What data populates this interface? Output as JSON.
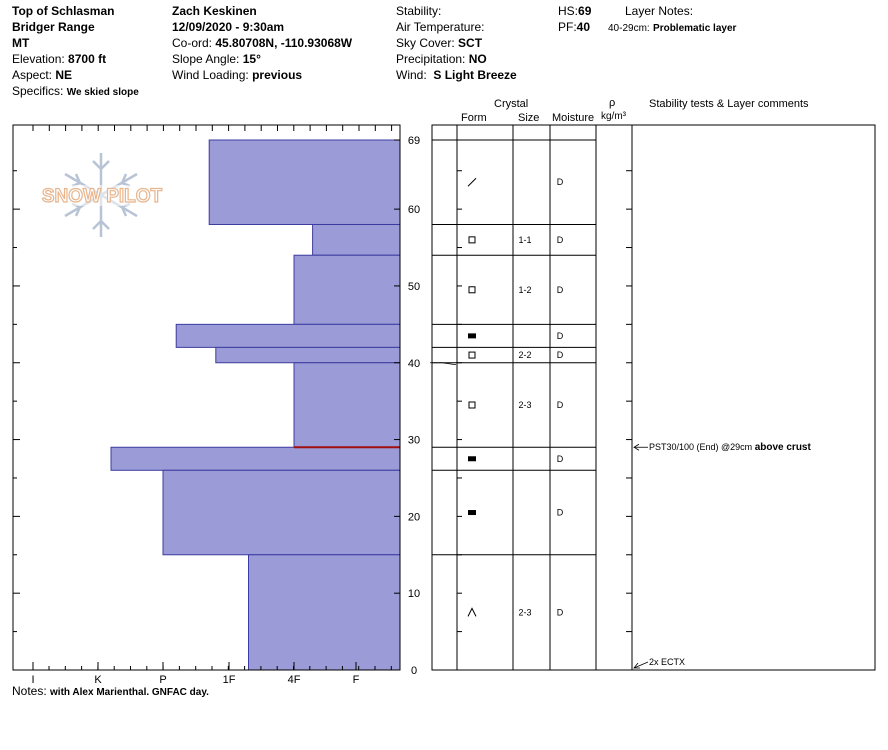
{
  "header": {
    "location": "Top of Schlasman",
    "range": "Bridger Range",
    "state": "MT",
    "elevation_label": "Elevation:",
    "elevation": "8700 ft",
    "aspect_label": "Aspect:",
    "aspect": "NE",
    "specifics_label": "Specifics:",
    "specifics": "We skied slope",
    "observer": "Zach Keskinen",
    "datetime": "12/09/2020 - 9:30am",
    "coord_label": "Co-ord:",
    "coord": "45.80708N, -110.93068W",
    "slope_label": "Slope Angle:",
    "slope": "15°",
    "wind_loading_label": "Wind Loading:",
    "wind_loading": "previous",
    "stability_label": "Stability:",
    "air_temp_label": "Air Temperature:",
    "sky_label": "Sky Cover:",
    "sky": "SCT",
    "precip_label": "Precipitation:",
    "precip": "NO",
    "wind_label": "Wind:",
    "wind": "S Light Breeze",
    "hs_label": "HS:",
    "hs": "69",
    "pf_label": "PF:",
    "pf": "40",
    "layer_notes_label": "Layer Notes:",
    "layer_note_range": "40-29cm:",
    "layer_note_text": "Problematic layer"
  },
  "columns": {
    "crystal": "Crystal",
    "form": "Form",
    "size": "Size",
    "moisture": "Moisture",
    "rho": "ρ",
    "density_unit": "kg/m³",
    "comments": "Stability tests & Layer comments"
  },
  "logo_text": "SNOW PILOT",
  "notes_label": "Notes:",
  "notes": "with Alex Marienthal. GNFAC day.",
  "colors": {
    "bar_fill": "#9b9bd7",
    "bar_stroke": "#3c3ca0",
    "crust_line": "#a01010",
    "logo": "#e8b48c",
    "snowflake": "#b8c4d6"
  },
  "chart_data": {
    "type": "snow_profile",
    "ylabel": "",
    "ylim": [
      0,
      69
    ],
    "height_ticks": [
      0,
      10,
      20,
      30,
      40,
      50,
      60,
      69
    ],
    "hardness_scale": [
      "I",
      "K",
      "P",
      "1F",
      "4F",
      "F"
    ],
    "hardness_values": [
      6,
      5,
      4,
      3,
      2,
      1
    ],
    "layers": [
      {
        "top": 69,
        "bottom": 58,
        "hardness": 3.3,
        "form": "/",
        "size": "",
        "moisture": "D"
      },
      {
        "top": 58,
        "bottom": 54,
        "hardness": 1.7,
        "form": "□",
        "size": "1-1",
        "moisture": "D"
      },
      {
        "top": 54,
        "bottom": 45,
        "hardness": 2.0,
        "form": "□",
        "size": "1-2",
        "moisture": "D"
      },
      {
        "top": 45,
        "bottom": 42,
        "hardness": 3.8,
        "form": "■",
        "size": "",
        "moisture": "D"
      },
      {
        "top": 42,
        "bottom": 40,
        "hardness": 3.2,
        "form": "□",
        "size": "2-2",
        "moisture": "D"
      },
      {
        "top": 40,
        "bottom": 29,
        "hardness": 2.0,
        "form": "□",
        "size": "2-3",
        "moisture": "D"
      },
      {
        "top": 29,
        "bottom": 26,
        "hardness": 4.8,
        "form": "■",
        "size": "",
        "moisture": "D"
      },
      {
        "top": 26,
        "bottom": 15,
        "hardness": 4.0,
        "form": "■",
        "size": "",
        "moisture": "D"
      },
      {
        "top": 15,
        "bottom": 0,
        "hardness": 2.7,
        "form": "^",
        "size": "2-3",
        "moisture": "D"
      }
    ],
    "crust_depth": 29,
    "tests": [
      {
        "depth": 29,
        "text": "PST30/100 (End) @29cm",
        "bold": "above crust"
      },
      {
        "depth": 0,
        "text": "2x ECTX",
        "bold": ""
      }
    ]
  }
}
